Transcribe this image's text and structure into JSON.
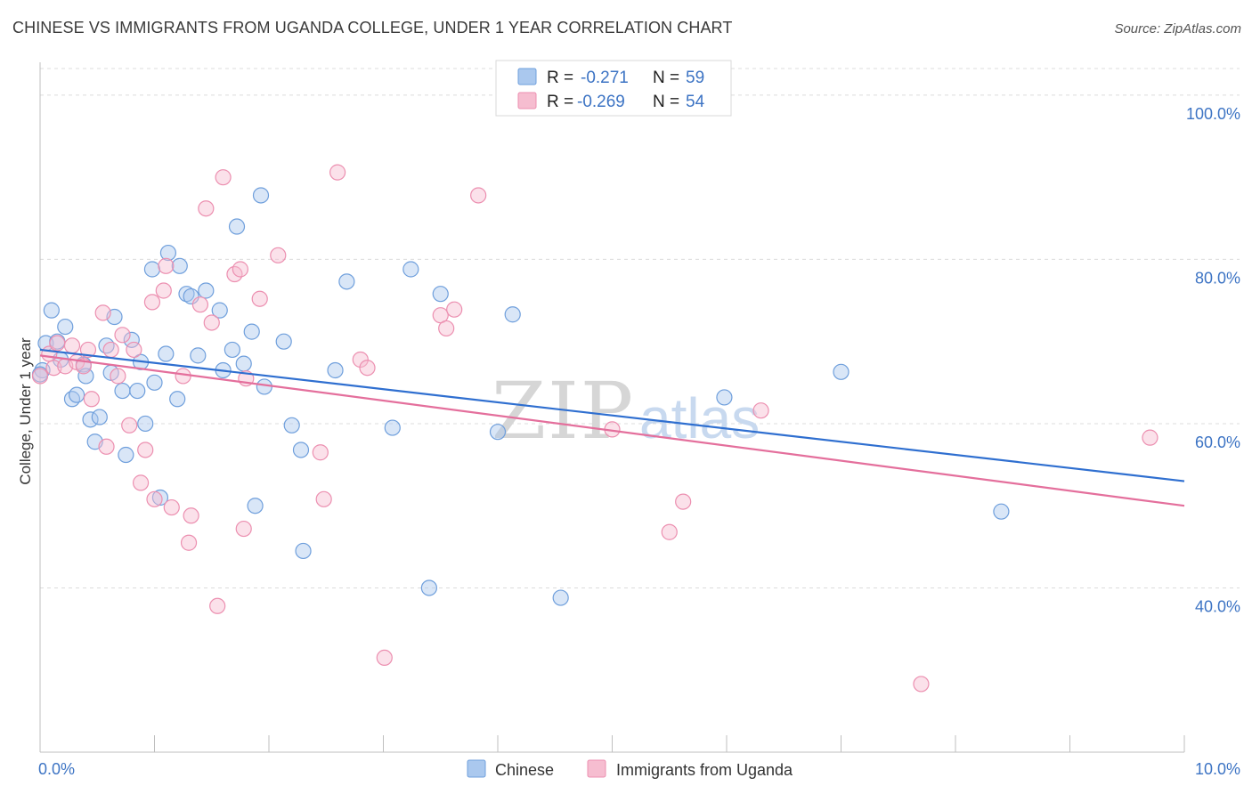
{
  "header": {
    "title": "CHINESE VS IMMIGRANTS FROM UGANDA COLLEGE, UNDER 1 YEAR CORRELATION CHART",
    "source": "Source: ZipAtlas.com"
  },
  "legend_box": {
    "rows": [
      {
        "r_label": "R =",
        "r_value": "-0.271",
        "n_label": "N =",
        "n_value": "59"
      },
      {
        "r_label": "R =",
        "r_value": "-0.269",
        "n_label": "N =",
        "n_value": "54"
      }
    ]
  },
  "watermark": {
    "zip": "ZIP",
    "atlas": "atlas"
  },
  "colors": {
    "chinese_fill": "#aac8ee",
    "chinese_stroke": "#6f9fdc",
    "chinese_line": "#2f6fd0",
    "uganda_fill": "#f6bdd0",
    "uganda_stroke": "#ec8fb0",
    "uganda_line": "#e46f9c",
    "tick_color": "#3d74c4",
    "grid": "#dcdcdc"
  },
  "chart_data": {
    "type": "scatter",
    "title": "CHINESE VS IMMIGRANTS FROM UGANDA COLLEGE, UNDER 1 YEAR CORRELATION CHART",
    "xlabel": "",
    "ylabel": "College, Under 1 year",
    "xlim": [
      0,
      10
    ],
    "ylim": [
      20,
      104
    ],
    "x_ticks": [
      "0.0%",
      "10.0%"
    ],
    "y_ticks": [
      {
        "value": 40,
        "label": "40.0%"
      },
      {
        "value": 60,
        "label": "60.0%"
      },
      {
        "value": 80,
        "label": "80.0%"
      },
      {
        "value": 100,
        "label": "100.0%"
      }
    ],
    "grid": true,
    "legend": "bottom",
    "series": [
      {
        "name": "Chinese",
        "trend": {
          "x": [
            0.0,
            10.0
          ],
          "y": [
            69.0,
            53.0
          ]
        },
        "points": [
          {
            "x": 0.02,
            "y": 66.5
          },
          {
            "x": 0.05,
            "y": 69.8
          },
          {
            "x": 0.1,
            "y": 73.8
          },
          {
            "x": 0.15,
            "y": 70.0
          },
          {
            "x": 0.18,
            "y": 67.8
          },
          {
            "x": 0.22,
            "y": 71.8
          },
          {
            "x": 0.28,
            "y": 63.0
          },
          {
            "x": 0.32,
            "y": 63.5
          },
          {
            "x": 0.38,
            "y": 67.2
          },
          {
            "x": 0.4,
            "y": 65.8
          },
          {
            "x": 0.44,
            "y": 60.5
          },
          {
            "x": 0.48,
            "y": 57.8
          },
          {
            "x": 0.52,
            "y": 60.8
          },
          {
            "x": 0.58,
            "y": 69.5
          },
          {
            "x": 0.62,
            "y": 66.2
          },
          {
            "x": 0.65,
            "y": 73.0
          },
          {
            "x": 0.72,
            "y": 64.0
          },
          {
            "x": 0.75,
            "y": 56.2
          },
          {
            "x": 0.8,
            "y": 70.2
          },
          {
            "x": 0.85,
            "y": 64.0
          },
          {
            "x": 0.88,
            "y": 67.5
          },
          {
            "x": 0.92,
            "y": 60.0
          },
          {
            "x": 0.98,
            "y": 78.8
          },
          {
            "x": 1.0,
            "y": 65.0
          },
          {
            "x": 1.05,
            "y": 51.0
          },
          {
            "x": 1.1,
            "y": 68.5
          },
          {
            "x": 1.12,
            "y": 80.8
          },
          {
            "x": 1.2,
            "y": 63.0
          },
          {
            "x": 1.22,
            "y": 79.2
          },
          {
            "x": 1.28,
            "y": 75.8
          },
          {
            "x": 1.32,
            "y": 75.5
          },
          {
            "x": 1.38,
            "y": 68.3
          },
          {
            "x": 1.45,
            "y": 76.2
          },
          {
            "x": 1.57,
            "y": 73.8
          },
          {
            "x": 1.6,
            "y": 66.5
          },
          {
            "x": 1.68,
            "y": 69.0
          },
          {
            "x": 1.72,
            "y": 84.0
          },
          {
            "x": 1.78,
            "y": 67.3
          },
          {
            "x": 1.85,
            "y": 71.2
          },
          {
            "x": 1.88,
            "y": 50.0
          },
          {
            "x": 1.93,
            "y": 87.8
          },
          {
            "x": 1.96,
            "y": 64.5
          },
          {
            "x": 2.13,
            "y": 70.0
          },
          {
            "x": 2.2,
            "y": 59.8
          },
          {
            "x": 2.28,
            "y": 56.8
          },
          {
            "x": 2.3,
            "y": 44.5
          },
          {
            "x": 2.58,
            "y": 66.5
          },
          {
            "x": 2.68,
            "y": 77.3
          },
          {
            "x": 3.08,
            "y": 59.5
          },
          {
            "x": 3.24,
            "y": 78.8
          },
          {
            "x": 3.4,
            "y": 40.0
          },
          {
            "x": 3.5,
            "y": 75.8
          },
          {
            "x": 4.0,
            "y": 59.0
          },
          {
            "x": 4.13,
            "y": 73.3
          },
          {
            "x": 4.55,
            "y": 38.8
          },
          {
            "x": 5.98,
            "y": 63.2
          },
          {
            "x": 7.0,
            "y": 66.3
          },
          {
            "x": 8.4,
            "y": 49.3
          },
          {
            "x": 0.0,
            "y": 66.0
          }
        ]
      },
      {
        "name": "Immigrants from Uganda",
        "trend": {
          "x": [
            0.0,
            10.0
          ],
          "y": [
            68.3,
            50.0
          ]
        },
        "points": [
          {
            "x": 0.0,
            "y": 65.8
          },
          {
            "x": 0.08,
            "y": 68.5
          },
          {
            "x": 0.12,
            "y": 66.8
          },
          {
            "x": 0.15,
            "y": 69.8
          },
          {
            "x": 0.22,
            "y": 67.0
          },
          {
            "x": 0.28,
            "y": 69.5
          },
          {
            "x": 0.32,
            "y": 67.5
          },
          {
            "x": 0.38,
            "y": 67.0
          },
          {
            "x": 0.42,
            "y": 69.0
          },
          {
            "x": 0.45,
            "y": 63.0
          },
          {
            "x": 0.55,
            "y": 73.5
          },
          {
            "x": 0.58,
            "y": 57.2
          },
          {
            "x": 0.62,
            "y": 69.0
          },
          {
            "x": 0.68,
            "y": 65.8
          },
          {
            "x": 0.72,
            "y": 70.8
          },
          {
            "x": 0.78,
            "y": 59.8
          },
          {
            "x": 0.82,
            "y": 69.0
          },
          {
            "x": 0.88,
            "y": 52.8
          },
          {
            "x": 0.92,
            "y": 56.8
          },
          {
            "x": 0.98,
            "y": 74.8
          },
          {
            "x": 1.0,
            "y": 50.8
          },
          {
            "x": 1.08,
            "y": 76.2
          },
          {
            "x": 1.1,
            "y": 79.2
          },
          {
            "x": 1.15,
            "y": 49.8
          },
          {
            "x": 1.25,
            "y": 65.8
          },
          {
            "x": 1.3,
            "y": 45.5
          },
          {
            "x": 1.32,
            "y": 48.8
          },
          {
            "x": 1.4,
            "y": 74.5
          },
          {
            "x": 1.45,
            "y": 86.2
          },
          {
            "x": 1.5,
            "y": 72.3
          },
          {
            "x": 1.55,
            "y": 37.8
          },
          {
            "x": 1.6,
            "y": 90.0
          },
          {
            "x": 1.7,
            "y": 78.2
          },
          {
            "x": 1.75,
            "y": 78.8
          },
          {
            "x": 1.78,
            "y": 47.2
          },
          {
            "x": 1.8,
            "y": 65.5
          },
          {
            "x": 1.92,
            "y": 75.2
          },
          {
            "x": 2.08,
            "y": 80.5
          },
          {
            "x": 2.45,
            "y": 56.5
          },
          {
            "x": 2.48,
            "y": 50.8
          },
          {
            "x": 2.6,
            "y": 90.6
          },
          {
            "x": 2.8,
            "y": 67.8
          },
          {
            "x": 2.86,
            "y": 66.8
          },
          {
            "x": 3.01,
            "y": 31.5
          },
          {
            "x": 3.5,
            "y": 73.2
          },
          {
            "x": 3.55,
            "y": 71.6
          },
          {
            "x": 3.62,
            "y": 73.9
          },
          {
            "x": 3.83,
            "y": 87.8
          },
          {
            "x": 5.0,
            "y": 59.3
          },
          {
            "x": 5.5,
            "y": 46.8
          },
          {
            "x": 5.62,
            "y": 50.5
          },
          {
            "x": 6.3,
            "y": 61.6
          },
          {
            "x": 7.7,
            "y": 28.3
          },
          {
            "x": 9.7,
            "y": 58.3
          }
        ]
      }
    ]
  }
}
